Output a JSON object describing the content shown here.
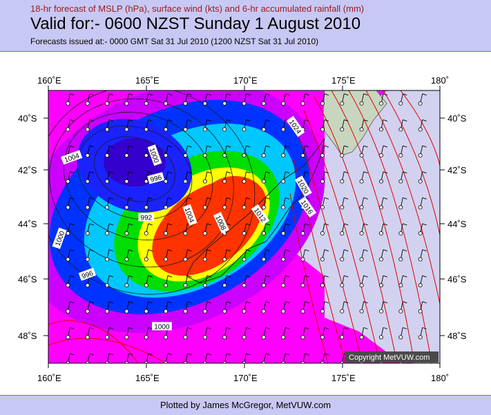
{
  "header": {
    "subtitle": "18-hr forecast of MSLP (hPa), surface wind (kts) and 6-hr accumulated rainfall (mm)",
    "title": "Valid for:- 0600 NZST Sunday  1 August 2010",
    "issued": "Forecasts issued at:- 0000 GMT Sat 31 Jul 2010 (1200 NZST Sat 31 Jul 2010)"
  },
  "map": {
    "lon_labels": [
      "160˚E",
      "165˚E",
      "170˚E",
      "175˚E",
      "180˚"
    ],
    "lat_labels_left": [
      "40˚S",
      "42˚S",
      "44˚S",
      "46˚S",
      "48˚S"
    ],
    "lat_labels_right": [
      "40˚S",
      "42˚S",
      "44˚S",
      "46˚S",
      "48˚S"
    ],
    "lon_range": [
      160,
      180
    ],
    "lat_range": [
      -38.5,
      -49
    ],
    "isobar_labels": [
      {
        "text": "1004",
        "lon": 161.2,
        "lat": -41.1,
        "angle": -20
      },
      {
        "text": "1000",
        "lon": 160.6,
        "lat": -44.2,
        "angle": -70
      },
      {
        "text": "996",
        "lon": 162.0,
        "lat": -45.6,
        "angle": -20
      },
      {
        "text": "1000",
        "lon": 165.4,
        "lat": -41.0,
        "angle": 70
      },
      {
        "text": "996",
        "lon": 165.5,
        "lat": -41.9,
        "angle": -15
      },
      {
        "text": "992",
        "lon": 165.0,
        "lat": -43.4,
        "angle": 0
      },
      {
        "text": "1004",
        "lon": 167.2,
        "lat": -43.3,
        "angle": 70
      },
      {
        "text": "1008",
        "lon": 168.8,
        "lat": -43.6,
        "angle": 65
      },
      {
        "text": "1012",
        "lon": 170.8,
        "lat": -43.3,
        "angle": 55
      },
      {
        "text": "1016",
        "lon": 173.2,
        "lat": -43.0,
        "angle": 55
      },
      {
        "text": "1020",
        "lon": 173.0,
        "lat": -42.2,
        "angle": 60
      },
      {
        "text": "1024",
        "lon": 172.6,
        "lat": -39.9,
        "angle": 55
      },
      {
        "text": "1000",
        "lon": 165.8,
        "lat": -47.6,
        "angle": 0
      }
    ],
    "copyright": "Copyright MetVUW.com",
    "colors": {
      "background": "#d2d2f0",
      "isobar": "#e00000",
      "land": "#c8d6c0",
      "rain_light": "#ff00ff",
      "rain_heavy": "#ff3300"
    }
  },
  "footer": {
    "credit": "Plotted by James McGregor, MetVUW.com"
  }
}
